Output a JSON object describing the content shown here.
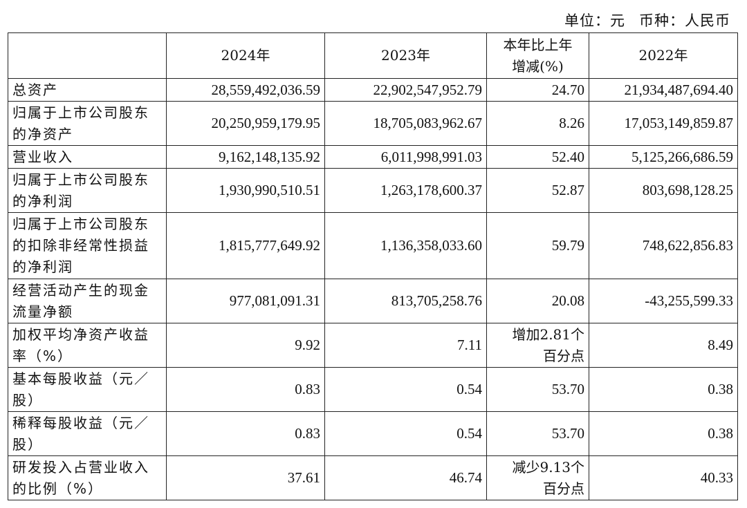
{
  "unit_note": {
    "unit": "单位：元",
    "currency": "币种：人民币"
  },
  "table": {
    "headers": {
      "label": "",
      "y2024": "2024年",
      "y2023": "2023年",
      "change_line1": "本年比上年",
      "change_line2": "增减(%)",
      "y2022": "2022年"
    },
    "rows": [
      {
        "label": "总资产",
        "y2024": "28,559,492,036.59",
        "y2023": "22,902,547,952.79",
        "change": "24.70",
        "y2022": "21,934,487,694.40"
      },
      {
        "label": "归属于上市公司股东的净资产",
        "y2024": "20,250,959,179.95",
        "y2023": "18,705,083,962.67",
        "change": "8.26",
        "y2022": "17,053,149,859.87"
      },
      {
        "label": "营业收入",
        "y2024": "9,162,148,135.92",
        "y2023": "6,011,998,991.03",
        "change": "52.40",
        "y2022": "5,125,266,686.59"
      },
      {
        "label": "归属于上市公司股东的净利润",
        "y2024": "1,930,990,510.51",
        "y2023": "1,263,178,600.37",
        "change": "52.87",
        "y2022": "803,698,128.25"
      },
      {
        "label": "归属于上市公司股东的扣除非经常性损益的净利润",
        "y2024": "1,815,777,649.92",
        "y2023": "1,136,358,033.60",
        "change": "59.79",
        "y2022": "748,622,856.83"
      },
      {
        "label": "经营活动产生的现金流量净额",
        "y2024": "977,081,091.31",
        "y2023": "813,705,258.76",
        "change": "20.08",
        "y2022": "-43,255,599.33"
      },
      {
        "label": "加权平均净资产收益率（%）",
        "y2024": "9.92",
        "y2023": "7.11",
        "change_line1": "增加2.81个",
        "change_line2": "百分点",
        "y2022": "8.49"
      },
      {
        "label": "基本每股收益（元／股）",
        "y2024": "0.83",
        "y2023": "0.54",
        "change": "53.70",
        "y2022": "0.38"
      },
      {
        "label": "稀释每股收益（元／股）",
        "y2024": "0.83",
        "y2023": "0.54",
        "change": "53.70",
        "y2022": "0.38"
      },
      {
        "label": "研发投入占营业收入的比例（%）",
        "y2024": "37.61",
        "y2023": "46.74",
        "change_line1": "减少9.13个",
        "change_line2": "百分点",
        "y2022": "40.33"
      }
    ]
  }
}
